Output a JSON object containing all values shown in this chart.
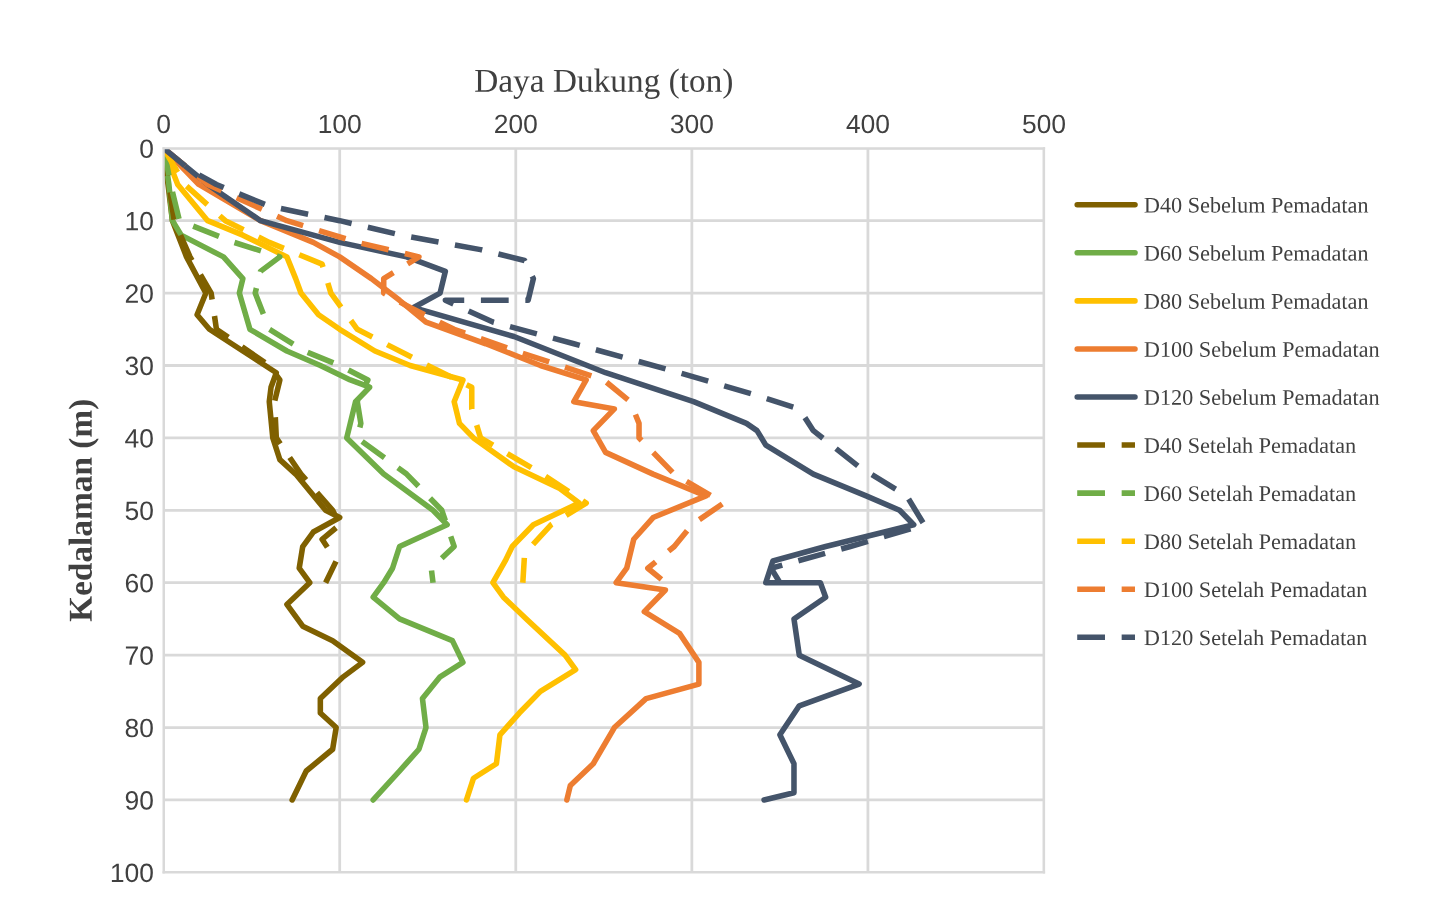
{
  "chart_data": {
    "type": "line",
    "xlabel": "Daya Dukung (ton)",
    "ylabel": "Kedalaman (m)",
    "xlim": [
      0,
      500
    ],
    "xticks": [
      0,
      100,
      200,
      300,
      400,
      500
    ],
    "ylim": [
      100,
      0
    ],
    "yticks": [
      0,
      10,
      20,
      30,
      40,
      50,
      60,
      70,
      80,
      90,
      100
    ],
    "grid": true,
    "legend": "right",
    "marker": "none",
    "series": [
      {
        "name": "D40 Sebelum Pemadatan",
        "color": "#7f6000",
        "line_style": "solid",
        "x": [
          0,
          5,
          13,
          24,
          19,
          26,
          45,
          64,
          61,
          60,
          62,
          66,
          75,
          92,
          100,
          85,
          79,
          77,
          83,
          70,
          79,
          96,
          113,
          102,
          89,
          89,
          98,
          96,
          81,
          73
        ],
        "values": [
          0,
          10,
          15,
          20,
          23,
          25,
          28,
          31,
          33,
          35,
          40,
          43,
          45,
          50,
          51,
          53,
          55,
          58,
          60,
          63,
          66,
          68,
          71,
          73,
          76,
          78,
          80,
          83,
          86,
          90
        ]
      },
      {
        "name": "D60 Sebelum Pemadatan",
        "color": "#70ad47",
        "line_style": "solid",
        "x": [
          0,
          3,
          5,
          10,
          34,
          45,
          43,
          49,
          70,
          89,
          106,
          117,
          109,
          106,
          104,
          125,
          153,
          161,
          134,
          130,
          125,
          119,
          134,
          164,
          170,
          157,
          147,
          149,
          145,
          134,
          119
        ],
        "values": [
          0,
          5,
          10,
          12,
          15,
          18,
          20,
          25,
          28,
          30,
          32,
          33,
          35,
          38,
          40,
          45,
          50,
          52,
          55,
          58,
          60,
          62,
          65,
          68,
          71,
          73,
          76,
          80,
          83,
          86,
          90
        ]
      },
      {
        "name": "D80 Sebelum Pemadatan",
        "color": "#ffc000",
        "line_style": "solid",
        "x": [
          0,
          8,
          25,
          45,
          70,
          75,
          78,
          88,
          100,
          120,
          140,
          170,
          165,
          168,
          176,
          199,
          225,
          236,
          210,
          198,
          194,
          187,
          193,
          206,
          228,
          234,
          214,
          202,
          191,
          189,
          176,
          172
        ],
        "values": [
          0,
          5,
          10,
          12,
          15,
          18,
          20,
          23,
          25,
          28,
          30,
          32,
          35,
          38,
          40,
          44,
          47,
          49,
          52,
          55,
          57,
          60,
          62,
          65,
          70,
          72,
          75,
          78,
          81,
          85,
          87,
          90
        ]
      },
      {
        "name": "D100 Sebelum Pemadatan",
        "color": "#ed7d31",
        "line_style": "solid",
        "x": [
          0,
          20,
          55,
          85,
          100,
          118,
          134,
          149,
          183,
          214,
          240,
          233,
          256,
          244,
          251,
          278,
          308,
          278,
          267,
          263,
          257,
          285,
          273,
          293,
          304,
          304,
          274,
          256,
          244,
          231,
          229
        ],
        "values": [
          0,
          5,
          10,
          13,
          15,
          18,
          21,
          24,
          27,
          30,
          32,
          35,
          36,
          39,
          42,
          45,
          48,
          51,
          54,
          58,
          60,
          61,
          64,
          67,
          71,
          74,
          76,
          80,
          85,
          88,
          90
        ]
      },
      {
        "name": "D120 Sebelum Pemadatan",
        "color": "#44546a",
        "line_style": "solid",
        "x": [
          0,
          25,
          55,
          100,
          138,
          160,
          157,
          142,
          199,
          251,
          301,
          331,
          337,
          342,
          369,
          399,
          418,
          426,
          376,
          346,
          342,
          373,
          376,
          358,
          361,
          395,
          361,
          350,
          358,
          358,
          341
        ],
        "values": [
          0,
          5,
          10,
          13,
          15,
          17,
          20,
          22,
          26,
          31,
          35,
          38,
          39,
          41,
          45,
          48,
          50,
          52,
          55,
          57,
          60,
          60,
          62,
          65,
          70,
          74,
          77,
          81,
          85,
          89,
          90
        ]
      },
      {
        "name": "D40 Setelah Pemadatan",
        "color": "#7f6000",
        "line_style": "dashed",
        "x": [
          0,
          6,
          15,
          27,
          30,
          60,
          66,
          63,
          64,
          78,
          96,
          100,
          90,
          98,
          92
        ],
        "values": [
          0,
          10,
          15,
          20,
          25,
          30,
          32,
          35,
          40,
          45,
          50,
          52,
          54,
          57,
          60
        ]
      },
      {
        "name": "D60 Setelah Pemadatan",
        "color": "#70ad47",
        "line_style": "dashed",
        "x": [
          0,
          4,
          9,
          40,
          66,
          55,
          52,
          60,
          80,
          100,
          116,
          110,
          112,
          110,
          138,
          158,
          165,
          152,
          153
        ],
        "values": [
          0,
          5,
          10,
          13,
          15,
          17,
          20,
          25,
          28,
          30,
          32,
          35,
          38,
          40,
          45,
          50,
          55,
          58,
          60
        ]
      },
      {
        "name": "D80 Setelah Pemadatan",
        "color": "#ffc000",
        "line_style": "dashed",
        "x": [
          0,
          12,
          35,
          60,
          90,
          95,
          110,
          150,
          175,
          175,
          180,
          215,
          240,
          220,
          205,
          204
        ],
        "values": [
          0,
          5,
          10,
          13,
          16,
          20,
          25,
          30,
          33,
          36,
          40,
          45,
          49,
          52,
          56,
          60
        ]
      },
      {
        "name": "D100 Setelah Pemadatan",
        "color": "#ed7d31",
        "line_style": "dashed",
        "x": [
          0,
          25,
          70,
          110,
          145,
          125,
          125,
          140,
          165,
          200,
          225,
          250,
          265,
          270,
          270,
          290,
          318,
          300,
          290,
          275,
          285
        ],
        "values": [
          0,
          5,
          10,
          13,
          15,
          18,
          20,
          22,
          25,
          28,
          30,
          32,
          35,
          38,
          40,
          45,
          49,
          52,
          55,
          58,
          60
        ]
      },
      {
        "name": "D120 Setelah Pemadatan",
        "color": "#44546a",
        "line_style": "dashed",
        "x": [
          0,
          15,
          30,
          60,
          100,
          135,
          180,
          205,
          210,
          207,
          160,
          187,
          233,
          293,
          335,
          361,
          369,
          395,
          422,
          432,
          390,
          345,
          350
        ],
        "values": [
          0,
          3,
          5,
          8,
          10,
          12,
          14,
          15.5,
          18,
          21,
          21,
          24,
          27,
          31,
          34,
          36,
          39,
          44,
          48,
          52,
          55,
          58,
          60
        ]
      }
    ]
  }
}
